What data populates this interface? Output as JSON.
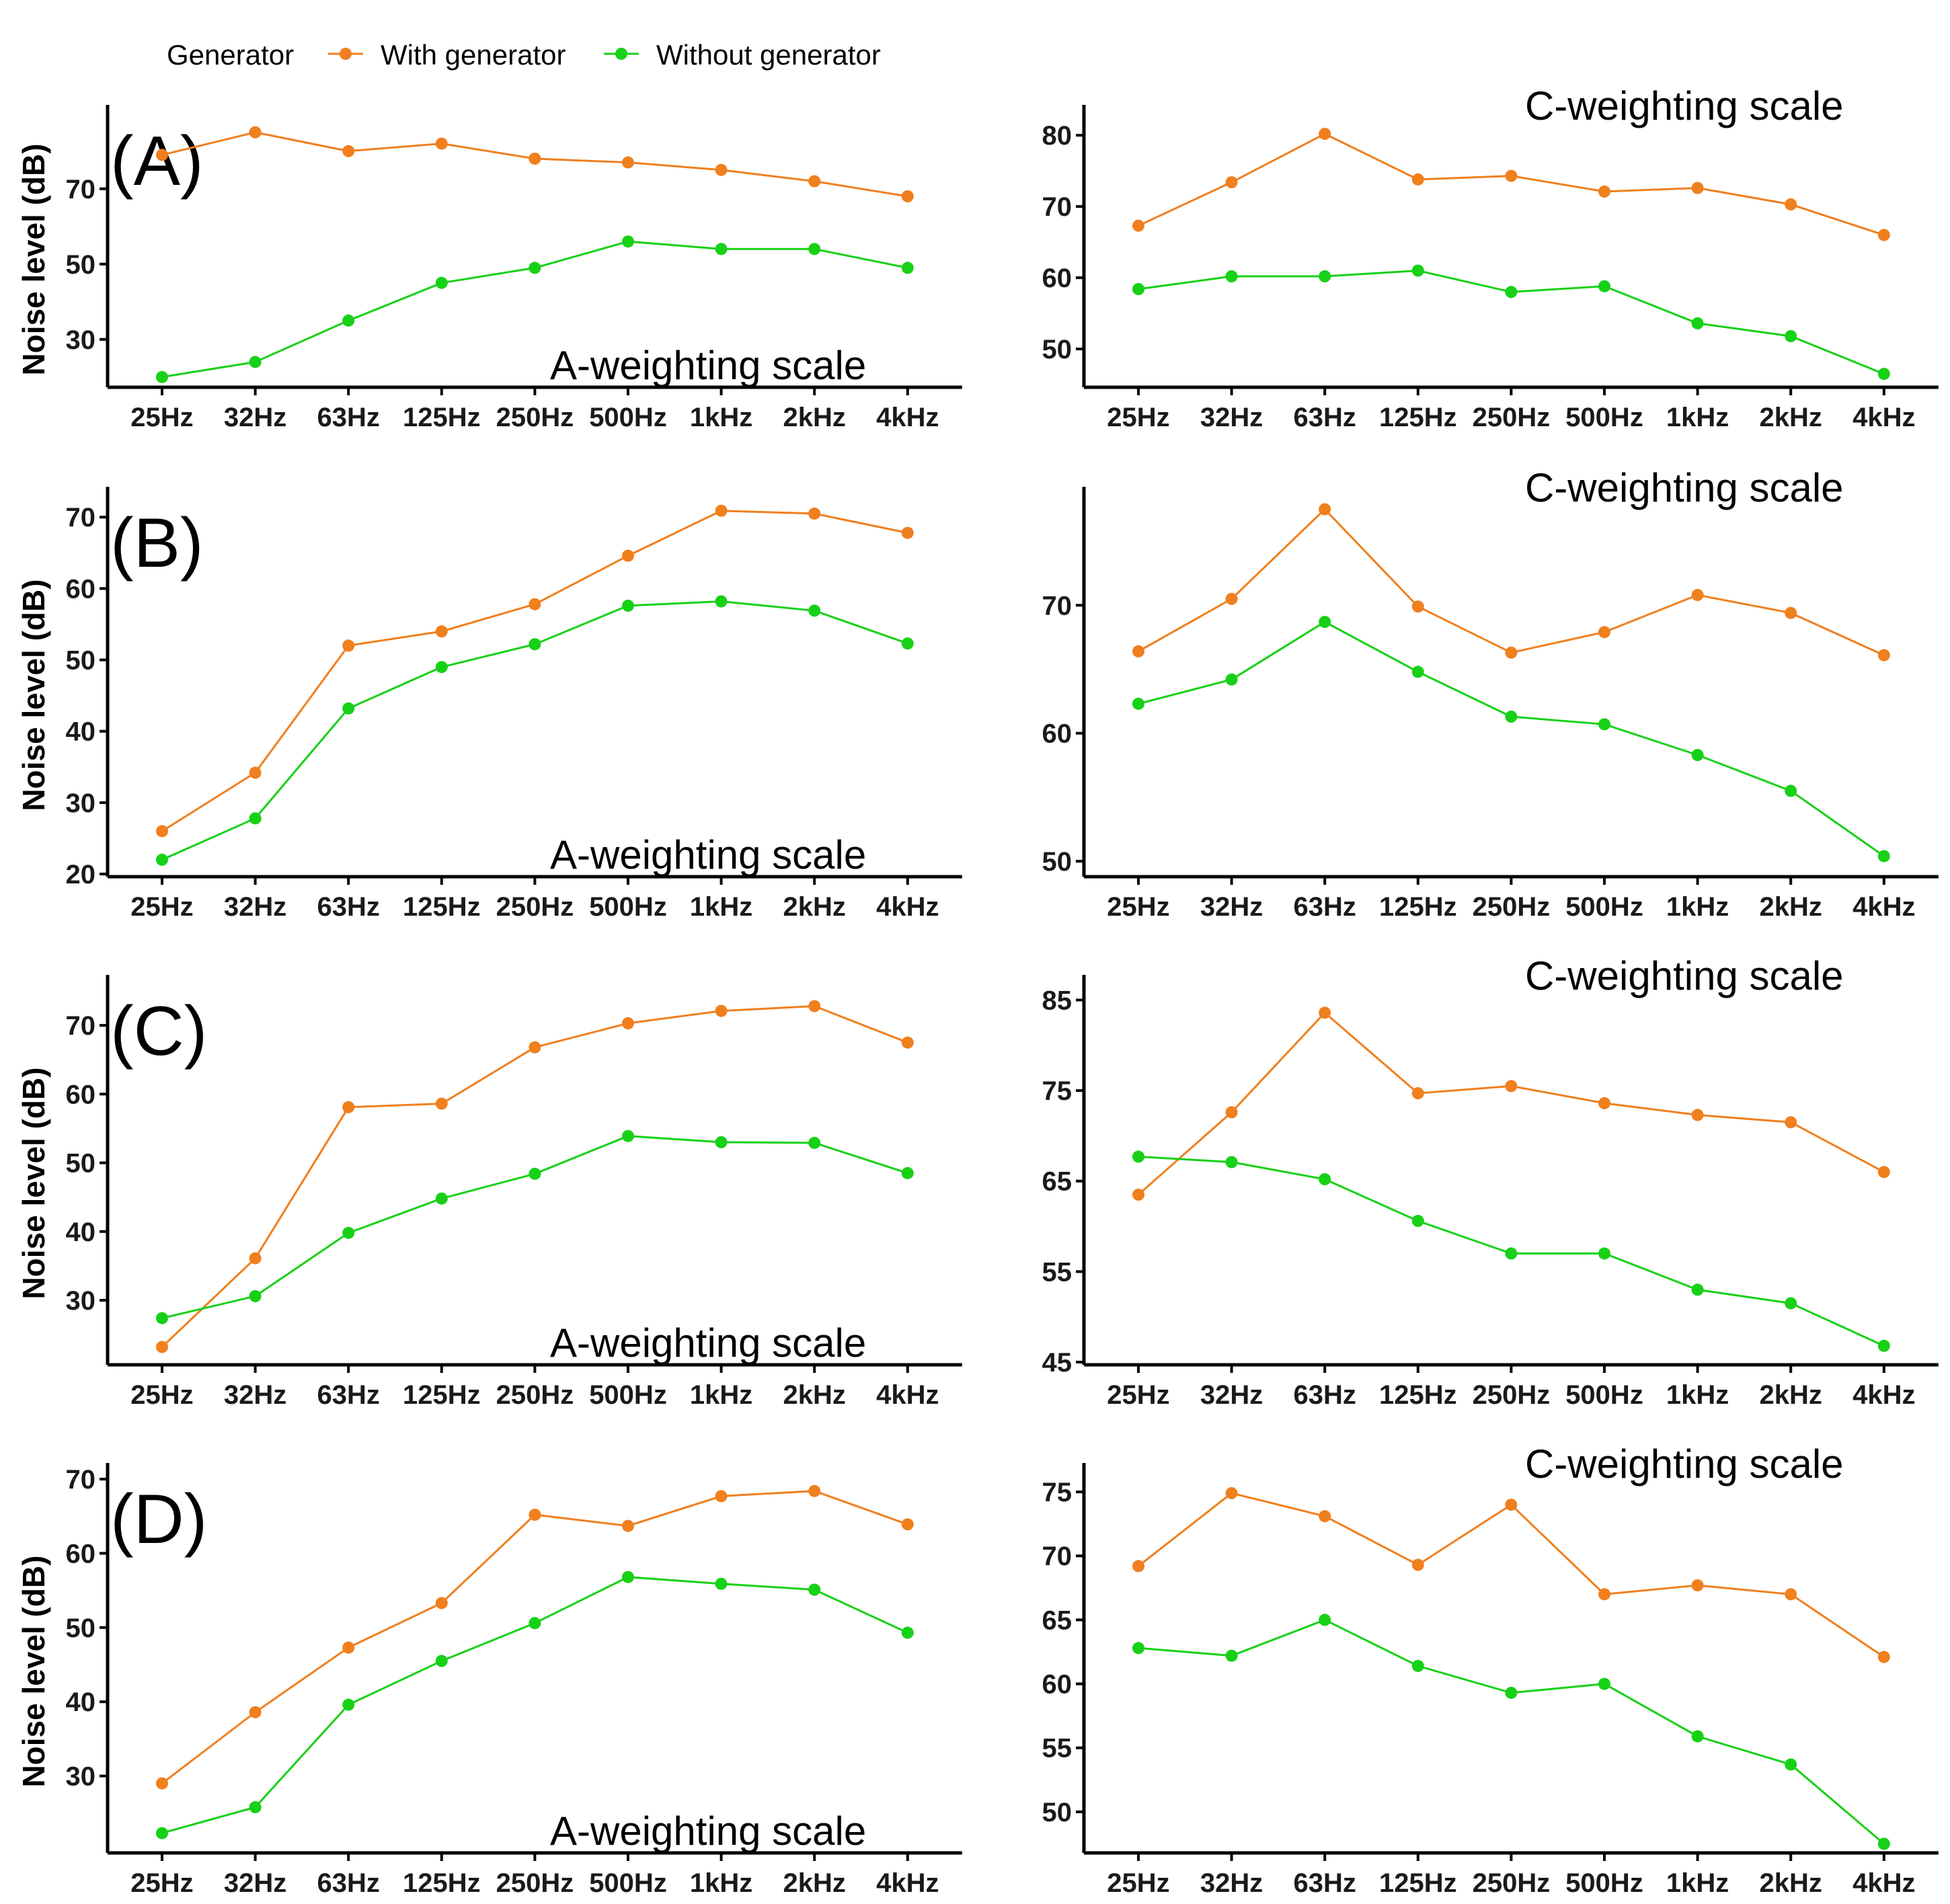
{
  "legend": {
    "title": "Generator",
    "entries": [
      {
        "name": "With generator",
        "color": "#F07F1E"
      },
      {
        "name": "Without generator",
        "color": "#17D117"
      }
    ]
  },
  "chart_data": [
    {
      "type": "line",
      "panel": "(A)",
      "scale_label": "A-weighting scale",
      "ylabel": "Noise level (dB)",
      "categories": [
        "25Hz",
        "32Hz",
        "63Hz",
        "125Hz",
        "250Hz",
        "500Hz",
        "1kHz",
        "2kHz",
        "4kHz"
      ],
      "yticks": [
        30,
        50,
        70
      ],
      "ylim": [
        18,
        88
      ],
      "series": [
        {
          "name": "With generator",
          "values": [
            79,
            85,
            80,
            82,
            78,
            77,
            75,
            72,
            68
          ]
        },
        {
          "name": "Without generator",
          "values": [
            20,
            24,
            35,
            45,
            49,
            56,
            54,
            54,
            49
          ]
        }
      ]
    },
    {
      "type": "line",
      "panel": "",
      "scale_label": "C-weighting scale",
      "ylabel": "",
      "categories": [
        "25Hz",
        "32Hz",
        "63Hz",
        "125Hz",
        "250Hz",
        "500Hz",
        "1kHz",
        "2kHz",
        "4kHz"
      ],
      "yticks": [
        50,
        60,
        70,
        80
      ],
      "ylim": [
        45,
        82
      ],
      "series": [
        {
          "name": "With generator",
          "values": [
            67.3,
            73.4,
            80.2,
            73.8,
            74.3,
            72.1,
            72.6,
            70.3,
            66
          ]
        },
        {
          "name": "Without generator",
          "values": [
            58.4,
            60.2,
            60.2,
            61,
            58,
            58.8,
            53.6,
            51.8,
            46.5
          ]
        }
      ]
    },
    {
      "type": "line",
      "panel": "(B)",
      "scale_label": "A-weighting scale",
      "ylabel": "Noise level (dB)",
      "categories": [
        "25Hz",
        "32Hz",
        "63Hz",
        "125Hz",
        "250Hz",
        "500Hz",
        "1kHz",
        "2kHz",
        "4kHz"
      ],
      "yticks": [
        20,
        30,
        40,
        50,
        60,
        70
      ],
      "ylim": [
        20,
        72
      ],
      "series": [
        {
          "name": "With generator",
          "values": [
            26,
            34.2,
            52,
            54,
            57.8,
            64.6,
            70.9,
            70.5,
            67.8
          ]
        },
        {
          "name": "Without generator",
          "values": [
            22,
            27.8,
            43.2,
            49,
            52.2,
            57.6,
            58.2,
            56.9,
            52.3
          ]
        }
      ]
    },
    {
      "type": "line",
      "panel": "",
      "scale_label": "C-weighting scale",
      "ylabel": "",
      "categories": [
        "25Hz",
        "32Hz",
        "63Hz",
        "125Hz",
        "250Hz",
        "500Hz",
        "1kHz",
        "2kHz",
        "4kHz"
      ],
      "yticks": [
        50,
        60,
        70
      ],
      "ylim": [
        49,
        78
      ],
      "series": [
        {
          "name": "With generator",
          "values": [
            66.4,
            70.5,
            77.5,
            69.9,
            66.3,
            67.9,
            70.8,
            69.4,
            66.1
          ]
        },
        {
          "name": "Without generator",
          "values": [
            62.3,
            64.2,
            68.7,
            64.8,
            61.3,
            60.7,
            58.3,
            55.5,
            50.4
          ]
        }
      ]
    },
    {
      "type": "line",
      "panel": "(C)",
      "scale_label": "A-weighting scale",
      "ylabel": "Noise level (dB)",
      "categories": [
        "25Hz",
        "32Hz",
        "63Hz",
        "125Hz",
        "250Hz",
        "500Hz",
        "1kHz",
        "2kHz",
        "4kHz"
      ],
      "yticks": [
        30,
        40,
        50,
        60,
        70
      ],
      "ylim": [
        21,
        75
      ],
      "series": [
        {
          "name": "With generator",
          "values": [
            23.2,
            36.1,
            58.1,
            58.6,
            66.8,
            70.3,
            72.1,
            72.8,
            67.5
          ]
        },
        {
          "name": "Without generator",
          "values": [
            27.4,
            30.6,
            39.8,
            44.8,
            48.4,
            53.9,
            53,
            52.9,
            48.5
          ]
        }
      ]
    },
    {
      "type": "line",
      "panel": "",
      "scale_label": "C-weighting scale",
      "ylabel": "",
      "categories": [
        "25Hz",
        "32Hz",
        "63Hz",
        "125Hz",
        "250Hz",
        "500Hz",
        "1kHz",
        "2kHz",
        "4kHz"
      ],
      "yticks": [
        45,
        55,
        65,
        75,
        85
      ],
      "ylim": [
        45,
        86
      ],
      "series": [
        {
          "name": "With generator",
          "values": [
            63.5,
            72.6,
            83.6,
            74.7,
            75.5,
            73.6,
            72.3,
            71.5,
            66
          ]
        },
        {
          "name": "Without generator",
          "values": [
            67.7,
            67.1,
            65.2,
            60.6,
            57,
            57,
            53,
            51.5,
            46.8
          ]
        }
      ]
    },
    {
      "type": "line",
      "panel": "(D)",
      "scale_label": "A-weighting scale",
      "ylabel": "Noise level (dB)",
      "categories": [
        "25Hz",
        "32Hz",
        "63Hz",
        "125Hz",
        "250Hz",
        "500Hz",
        "1kHz",
        "2kHz",
        "4kHz"
      ],
      "yticks": [
        30,
        40,
        50,
        60,
        70
      ],
      "ylim": [
        20,
        70
      ],
      "series": [
        {
          "name": "With generator",
          "values": [
            29,
            38.6,
            47.3,
            53.3,
            65.2,
            63.7,
            67.7,
            68.4,
            63.9
          ]
        },
        {
          "name": "Without generator",
          "values": [
            22.3,
            25.8,
            39.6,
            45.5,
            50.6,
            56.8,
            55.9,
            55.1,
            49.3
          ]
        }
      ]
    },
    {
      "type": "line",
      "panel": "",
      "scale_label": "C-weighting scale",
      "ylabel": "",
      "categories": [
        "25Hz",
        "32Hz",
        "63Hz",
        "125Hz",
        "250Hz",
        "500Hz",
        "1kHz",
        "2kHz",
        "4kHz"
      ],
      "yticks": [
        50,
        55,
        60,
        65,
        70,
        75
      ],
      "ylim": [
        47,
        76
      ],
      "series": [
        {
          "name": "With generator",
          "values": [
            69.2,
            74.9,
            73.1,
            69.3,
            74,
            67,
            67.7,
            67,
            62.1
          ]
        },
        {
          "name": "Without generator",
          "values": [
            62.8,
            62.2,
            65,
            61.4,
            59.3,
            60,
            55.9,
            53.7,
            47.5
          ]
        }
      ]
    }
  ]
}
